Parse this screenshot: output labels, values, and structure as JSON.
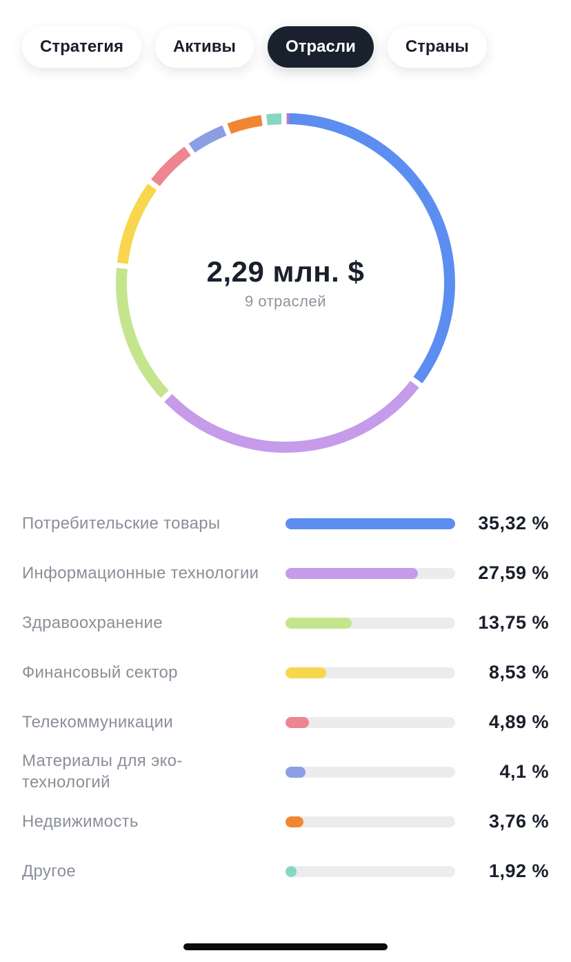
{
  "tabs": [
    {
      "label": "Стратегия",
      "active": false
    },
    {
      "label": "Активы",
      "active": false
    },
    {
      "label": "Отрасли",
      "active": true
    },
    {
      "label": "Страны",
      "active": false
    }
  ],
  "summary": {
    "total": "2,29 млн. $",
    "count": "9 отраслей"
  },
  "chart_data": {
    "type": "pie",
    "categories": [
      "Потребительские товары",
      "Информационные технологии",
      "Здравоохранение",
      "Финансовый сектор",
      "Телекоммуникации",
      "Материалы для эко-технологий",
      "Недвижимость",
      "Другое",
      ""
    ],
    "values": [
      35.32,
      27.59,
      13.75,
      8.53,
      4.89,
      4.1,
      3.76,
      1.92,
      0.14
    ],
    "colors": [
      "#5b8ef0",
      "#c69be9",
      "#c4e58e",
      "#f8d64e",
      "#ee8590",
      "#8b9ee3",
      "#f08634",
      "#86d7c2",
      "#b87ac3"
    ]
  },
  "sectors": [
    {
      "name": "Потребительские товары",
      "percent": "35,32 %",
      "value": 35.32,
      "color": "#5b8ef0"
    },
    {
      "name": "Информационные технологии",
      "percent": "27,59 %",
      "value": 27.59,
      "color": "#c69be9"
    },
    {
      "name": "Здравоохранение",
      "percent": "13,75 %",
      "value": 13.75,
      "color": "#c4e58e"
    },
    {
      "name": "Финансовый сектор",
      "percent": "8,53 %",
      "value": 8.53,
      "color": "#f8d64e"
    },
    {
      "name": "Телекоммуникации",
      "percent": "4,89 %",
      "value": 4.89,
      "color": "#ee8590"
    },
    {
      "name": "Материалы для эко-технологий",
      "percent": "4,1 %",
      "value": 4.1,
      "color": "#8b9ee3"
    },
    {
      "name": "Недвижимость",
      "percent": "3,76 %",
      "value": 3.76,
      "color": "#f08634"
    },
    {
      "name": "Другое",
      "percent": "1,92 %",
      "value": 1.92,
      "color": "#86d7c2"
    }
  ]
}
